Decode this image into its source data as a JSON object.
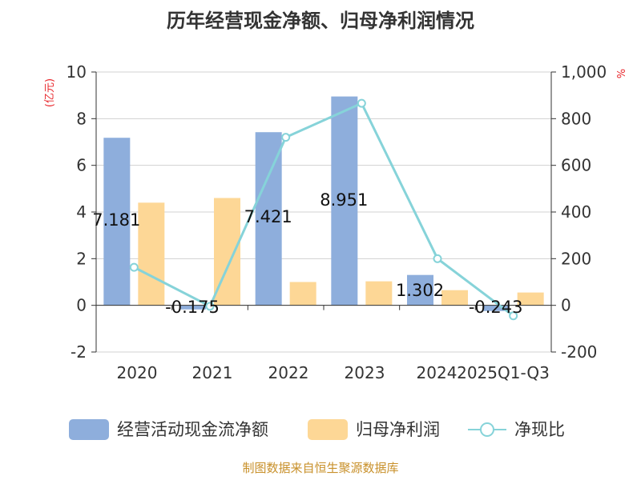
{
  "chart_data": {
    "type": "bar+line",
    "title": "历年经营现金净额、归母净利润情况",
    "categories": [
      "2020",
      "2021",
      "2022",
      "2023",
      "2024",
      "2025Q1-Q3"
    ],
    "series": [
      {
        "name": "经营活动现金流净额",
        "type": "bar",
        "axis": "left",
        "color": "#8eaedc",
        "values": [
          7.181,
          -0.175,
          7.421,
          8.951,
          1.302,
          -0.243
        ]
      },
      {
        "name": "归母净利润",
        "type": "bar",
        "axis": "left",
        "color": "#fdd796",
        "values": [
          4.4,
          4.6,
          1.0,
          1.03,
          0.65,
          0.55
        ]
      },
      {
        "name": "净现比",
        "type": "line",
        "axis": "right",
        "color": "#86d3d9",
        "values": [
          163,
          -4,
          720,
          866,
          200,
          -45
        ]
      }
    ],
    "data_labels": [
      "7.181",
      "-0.175",
      "7.421",
      "8.951",
      "1.302",
      "-0.243"
    ],
    "left_axis": {
      "label": "(亿元)",
      "ylim": [
        -2,
        10
      ],
      "ticks": [
        "-2",
        "0",
        "2",
        "4",
        "6",
        "8",
        "10"
      ],
      "tick_values": [
        -2,
        0,
        2,
        4,
        6,
        8,
        10
      ]
    },
    "right_axis": {
      "label": "%",
      "ylim": [
        -200,
        1000
      ],
      "ticks": [
        "-200",
        "0",
        "200",
        "400",
        "600",
        "800",
        "1,000"
      ],
      "tick_values": [
        -200,
        0,
        200,
        400,
        600,
        800,
        1000
      ]
    },
    "legend_position": "bottom",
    "grid": true
  },
  "source": "制图数据来自恒生聚源数据库"
}
